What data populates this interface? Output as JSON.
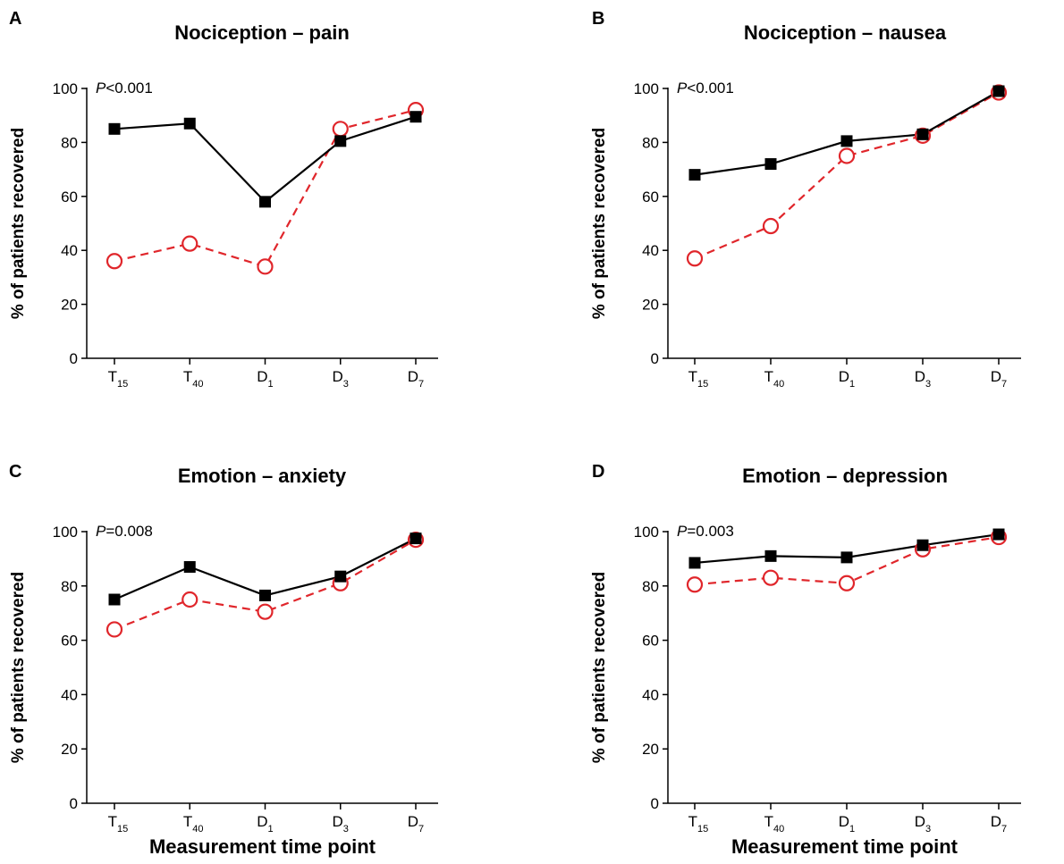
{
  "chart_data": [
    {
      "panel_label": "A",
      "type": "line",
      "title": "Nociception – pain",
      "ylabel": "% of patients recovered",
      "xlabel": "",
      "annotation": {
        "italic": "P",
        "rest": "<0.001"
      },
      "categories": [
        {
          "main": "T",
          "sub": "15"
        },
        {
          "main": "T",
          "sub": "40"
        },
        {
          "main": "D",
          "sub": "1"
        },
        {
          "main": "D",
          "sub": "3"
        },
        {
          "main": "D",
          "sub": "7"
        }
      ],
      "ylim": [
        0,
        100
      ],
      "yticks": [
        "0",
        "20",
        "40",
        "60",
        "80",
        "100"
      ],
      "series": [
        {
          "marker": "square",
          "color": "#000000",
          "dash": "solid",
          "values": [
            85,
            87,
            58,
            80.5,
            89.5
          ]
        },
        {
          "marker": "circle",
          "color": "#e0262b",
          "dash": "dashed",
          "values": [
            36,
            42.5,
            34,
            85,
            92
          ]
        }
      ]
    },
    {
      "panel_label": "B",
      "type": "line",
      "title": "Nociception – nausea",
      "ylabel": "% of patients recovered",
      "xlabel": "",
      "annotation": {
        "italic": "P",
        "rest": "<0.001"
      },
      "categories": [
        {
          "main": "T",
          "sub": "15"
        },
        {
          "main": "T",
          "sub": "40"
        },
        {
          "main": "D",
          "sub": "1"
        },
        {
          "main": "D",
          "sub": "3"
        },
        {
          "main": "D",
          "sub": "7"
        }
      ],
      "ylim": [
        0,
        100
      ],
      "yticks": [
        "0",
        "20",
        "40",
        "60",
        "80",
        "100"
      ],
      "series": [
        {
          "marker": "square",
          "color": "#000000",
          "dash": "solid",
          "values": [
            68,
            72,
            80.5,
            83,
            99
          ]
        },
        {
          "marker": "circle",
          "color": "#e0262b",
          "dash": "dashed",
          "values": [
            37,
            49,
            75,
            82.5,
            98.5
          ]
        }
      ]
    },
    {
      "panel_label": "C",
      "type": "line",
      "title": "Emotion – anxiety",
      "ylabel": "% of patients recovered",
      "xlabel": "Measurement time point",
      "annotation": {
        "italic": "P",
        "rest": "=0.008"
      },
      "categories": [
        {
          "main": "T",
          "sub": "15"
        },
        {
          "main": "T",
          "sub": "40"
        },
        {
          "main": "D",
          "sub": "1"
        },
        {
          "main": "D",
          "sub": "3"
        },
        {
          "main": "D",
          "sub": "7"
        }
      ],
      "ylim": [
        0,
        100
      ],
      "yticks": [
        "0",
        "20",
        "40",
        "60",
        "80",
        "100"
      ],
      "series": [
        {
          "marker": "square",
          "color": "#000000",
          "dash": "solid",
          "values": [
            75,
            87,
            76.5,
            83.5,
            97.5
          ]
        },
        {
          "marker": "circle",
          "color": "#e0262b",
          "dash": "dashed",
          "values": [
            64,
            75,
            70.5,
            81,
            97
          ]
        }
      ]
    },
    {
      "panel_label": "D",
      "type": "line",
      "title": "Emotion – depression",
      "ylabel": "% of patients recovered",
      "xlabel": "Measurement time point",
      "annotation": {
        "italic": "P",
        "rest": "=0.003"
      },
      "categories": [
        {
          "main": "T",
          "sub": "15"
        },
        {
          "main": "T",
          "sub": "40"
        },
        {
          "main": "D",
          "sub": "1"
        },
        {
          "main": "D",
          "sub": "3"
        },
        {
          "main": "D",
          "sub": "7"
        }
      ],
      "ylim": [
        0,
        100
      ],
      "yticks": [
        "0",
        "20",
        "40",
        "60",
        "80",
        "100"
      ],
      "series": [
        {
          "marker": "square",
          "color": "#000000",
          "dash": "solid",
          "values": [
            88.5,
            91,
            90.5,
            95,
            99
          ]
        },
        {
          "marker": "circle",
          "color": "#e0262b",
          "dash": "dashed",
          "values": [
            80.5,
            83,
            81,
            93.5,
            98
          ]
        }
      ]
    }
  ]
}
